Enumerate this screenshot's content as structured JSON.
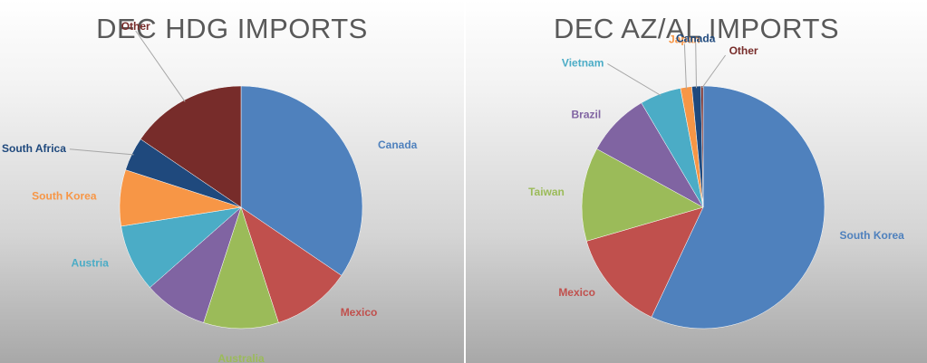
{
  "chart_data": [
    {
      "type": "pie",
      "title": "DEC HDG IMPORTS",
      "start_angle_deg": 0,
      "slices": [
        {
          "label": "Canada",
          "value": 34.5,
          "color": "#4F81BD",
          "label_pos": "right"
        },
        {
          "label": "Mexico",
          "value": 10.5,
          "color": "#C0504D",
          "label_pos": "right"
        },
        {
          "label": "Australia",
          "value": 10.0,
          "color": "#9BBB59",
          "label_pos": "below"
        },
        {
          "label": "",
          "value": 8.5,
          "color": "#8064A2",
          "label_pos": "none"
        },
        {
          "label": "Austria",
          "value": 9.0,
          "color": "#4BACC6",
          "label_pos": "left"
        },
        {
          "label": "South Korea",
          "value": 7.5,
          "color": "#F79646",
          "label_pos": "left"
        },
        {
          "label": "South Africa",
          "value": 4.5,
          "color": "#1F497D",
          "label_pos": "left-leader"
        },
        {
          "label": "Other",
          "value": 15.5,
          "color": "#772C2A",
          "label_pos": "top-leader"
        }
      ]
    },
    {
      "type": "pie",
      "title": "DEC AZ/AL IMPORTS",
      "start_angle_deg": 0,
      "slices": [
        {
          "label": "South Korea",
          "value": 57.0,
          "color": "#4F81BD",
          "label_pos": "right"
        },
        {
          "label": "Mexico",
          "value": 13.5,
          "color": "#C0504D",
          "label_pos": "left"
        },
        {
          "label": "Taiwan",
          "value": 12.5,
          "color": "#9BBB59",
          "label_pos": "left"
        },
        {
          "label": "Brazil",
          "value": 8.5,
          "color": "#8064A2",
          "label_pos": "left"
        },
        {
          "label": "Vietnam",
          "value": 5.5,
          "color": "#4BACC6",
          "label_pos": "left-leader"
        },
        {
          "label": "Japan",
          "value": 1.5,
          "color": "#F79646",
          "label_pos": "top-leader"
        },
        {
          "label": "Canada",
          "value": 1.2,
          "color": "#1F497D",
          "label_pos": "top-leader"
        },
        {
          "label": "Other",
          "value": 0.3,
          "color": "#772C2A",
          "label_pos": "right-leader"
        }
      ]
    }
  ]
}
